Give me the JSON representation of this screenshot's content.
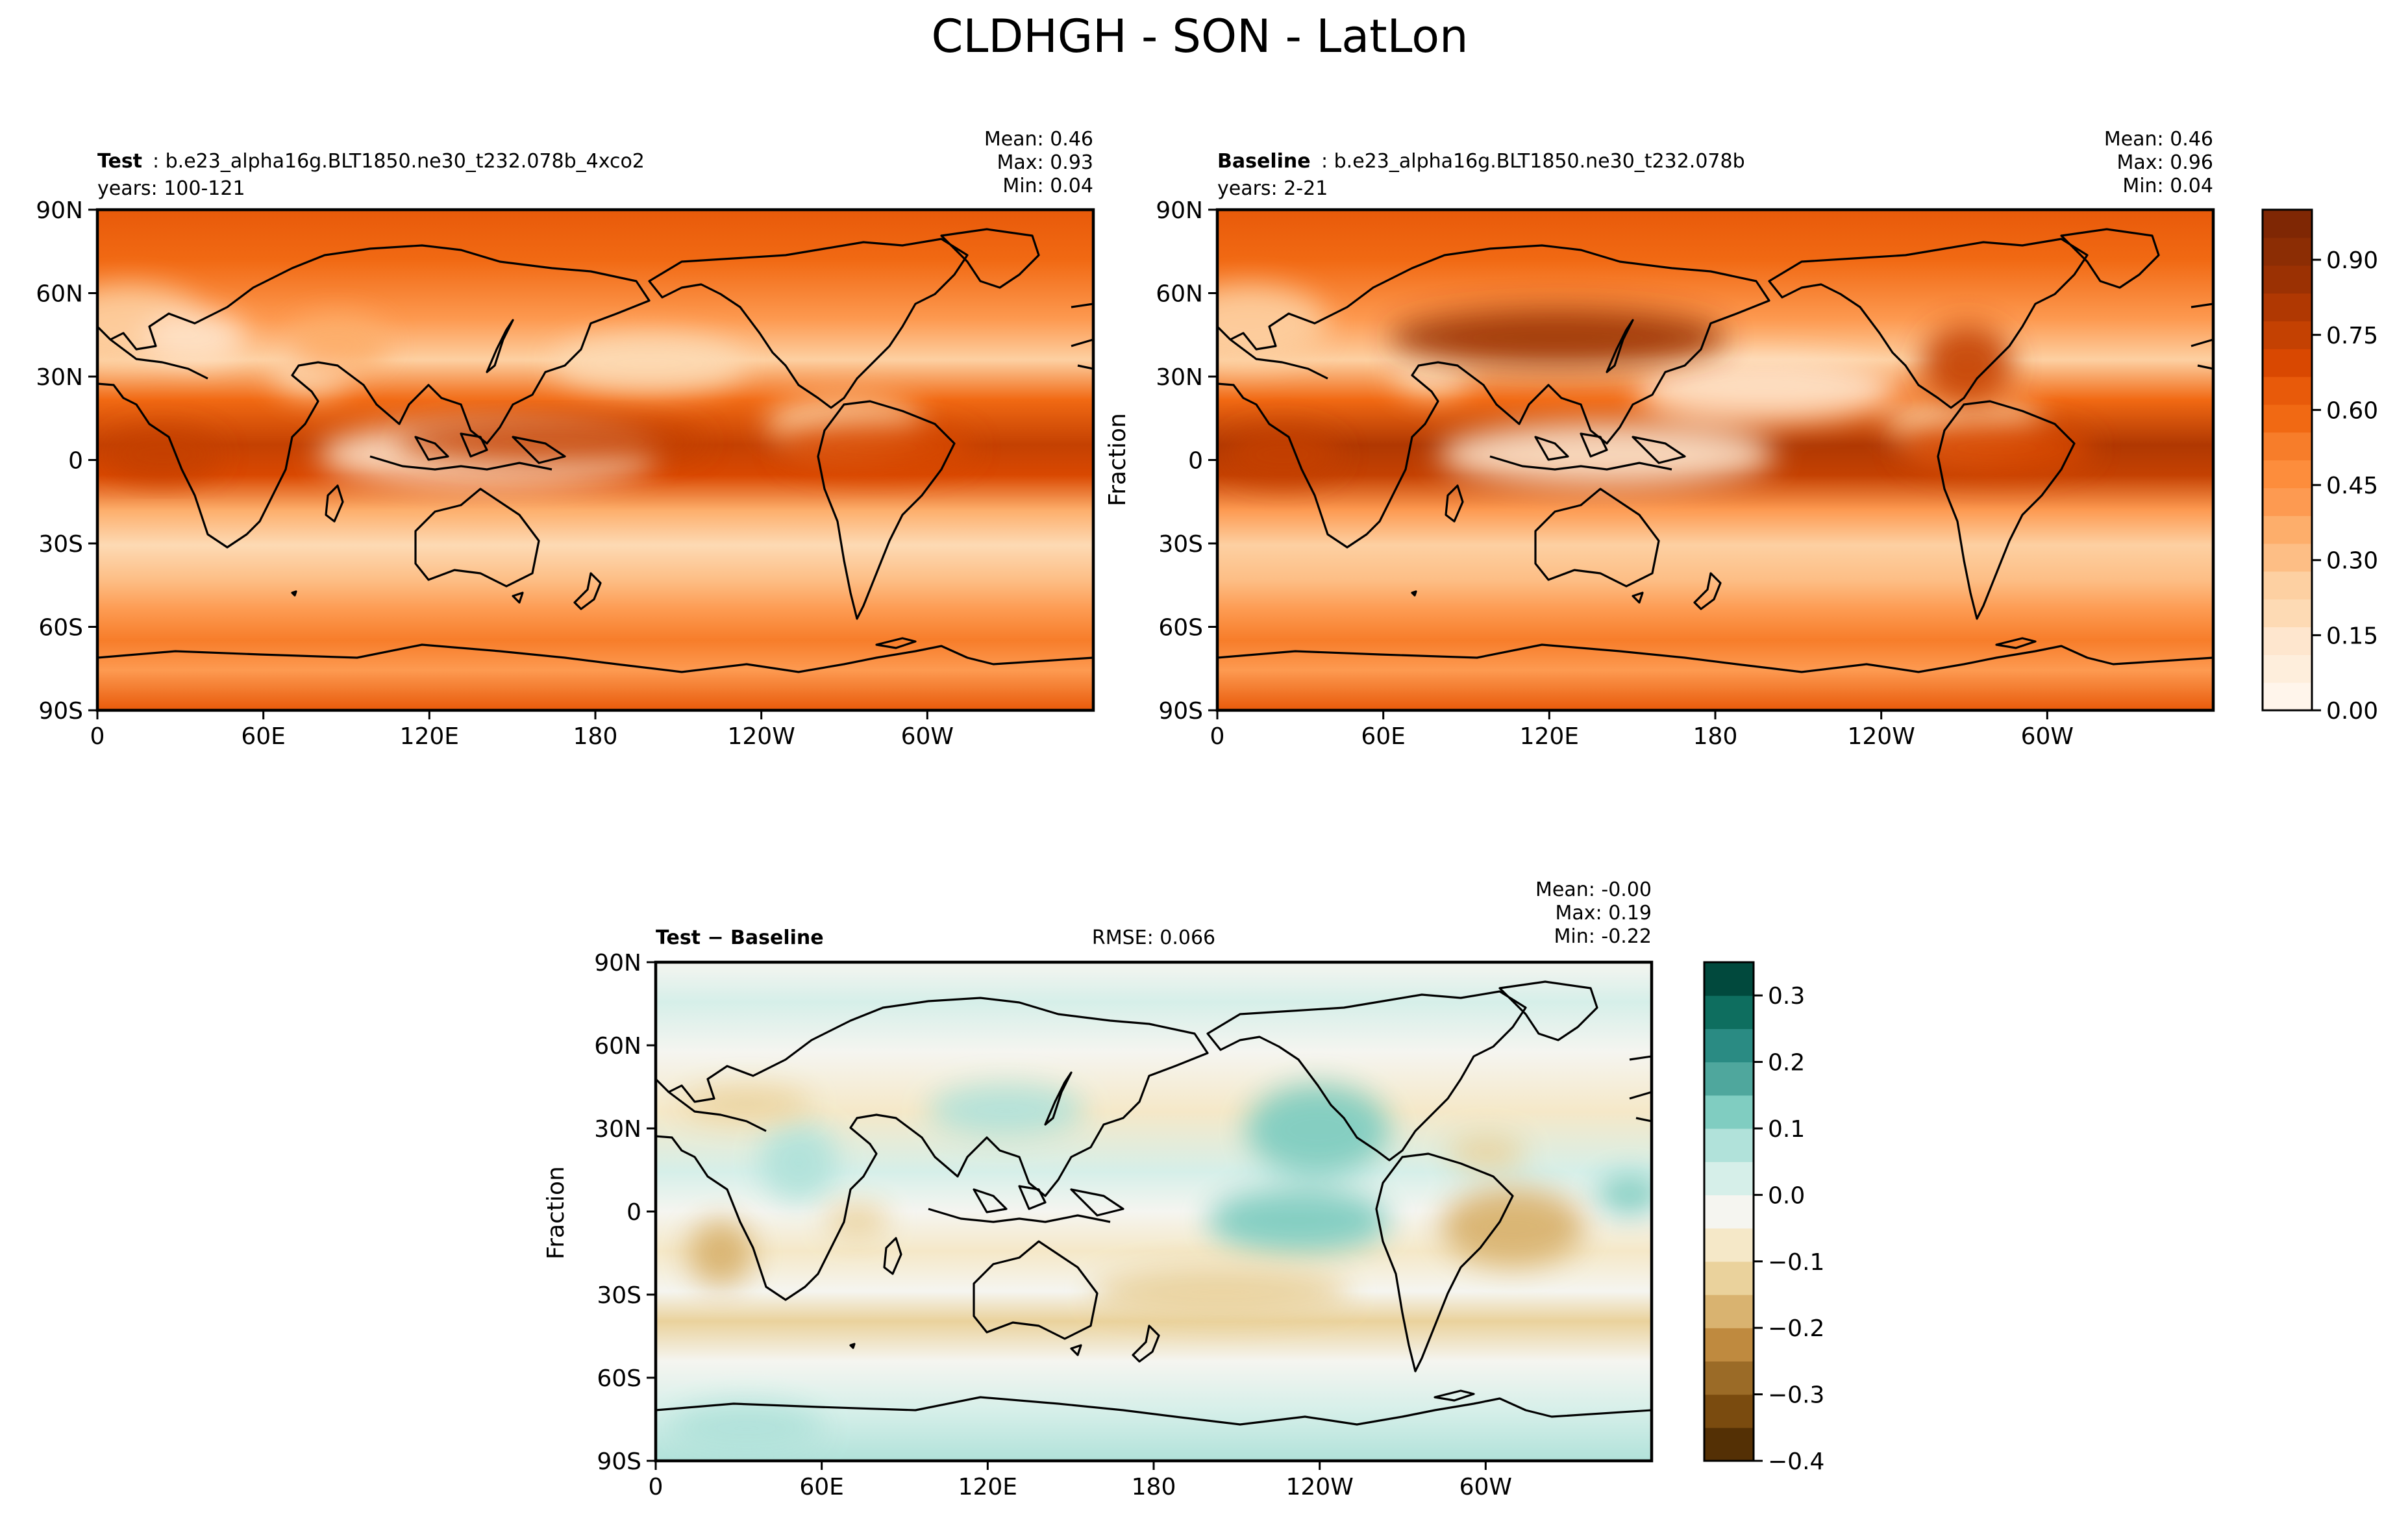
{
  "figure": {
    "title": "CLDHGH - SON - LatLon"
  },
  "chart_data": [
    {
      "type": "heatmap",
      "panel": "test",
      "header_bold": "Test",
      "header_rest": ": b.e23_alpha16g.BLT1850.ne30_t232.078b_4xco2",
      "subheader": "years: 100-121",
      "stats": [
        "Mean:  0.46",
        "Max:  0.93",
        "Min:  0.04"
      ],
      "x_ticks": [
        "0",
        "60E",
        "120E",
        "180",
        "120W",
        "60W"
      ],
      "y_ticks": [
        "90N",
        "60N",
        "30N",
        "0",
        "30S",
        "60S",
        "90S"
      ],
      "xlim": [
        0,
        360
      ],
      "ylim": [
        -90,
        90
      ],
      "colormap": "Oranges",
      "ylabel": ""
    },
    {
      "type": "heatmap",
      "panel": "baseline",
      "header_bold": "Baseline",
      "header_rest": ": b.e23_alpha16g.BLT1850.ne30_t232.078b",
      "subheader": "years: 2-21",
      "stats": [
        "Mean:  0.46",
        "Max:  0.96",
        "Min:  0.04"
      ],
      "x_ticks": [
        "0",
        "60E",
        "120E",
        "180",
        "120W",
        "60W"
      ],
      "y_ticks": [
        "90N",
        "60N",
        "30N",
        "0",
        "30S",
        "60S",
        "90S"
      ],
      "xlim": [
        0,
        360
      ],
      "ylim": [
        -90,
        90
      ],
      "colormap": "Oranges",
      "ylabel": "Fraction",
      "colorbar": {
        "ticks": [
          "0.00",
          "0.15",
          "0.30",
          "0.45",
          "0.60",
          "0.75",
          "0.90"
        ],
        "range": [
          0,
          1
        ],
        "levels": 20
      }
    },
    {
      "type": "heatmap",
      "panel": "difference",
      "header_bold": "Test − Baseline",
      "rmse": "RMSE: 0.066",
      "stats": [
        "Mean: -0.00",
        "Max:  0.19",
        "Min: -0.22"
      ],
      "x_ticks": [
        "0",
        "60E",
        "120E",
        "180",
        "120W",
        "60W"
      ],
      "y_ticks": [
        "90N",
        "60N",
        "30N",
        "0",
        "30S",
        "60S",
        "90S"
      ],
      "xlim": [
        0,
        360
      ],
      "ylim": [
        -90,
        90
      ],
      "colormap": "BrBG",
      "ylabel": "Fraction",
      "colorbar": {
        "ticks": [
          "0.3",
          "0.2",
          "0.1",
          "0.0",
          "−0.1",
          "−0.2",
          "−0.3",
          "−0.4"
        ],
        "range": [
          -0.4,
          0.35
        ],
        "levels": 15
      }
    }
  ],
  "colors": {
    "oranges": [
      "#fff5eb",
      "#feeedc",
      "#fee6ce",
      "#fddab4",
      "#fdd0a2",
      "#fdbe85",
      "#fdae6b",
      "#fd9a51",
      "#fd8d3c",
      "#f77d2a",
      "#f16913",
      "#e85a0a",
      "#d94801",
      "#c44102",
      "#b03802",
      "#9b3103",
      "#8c2d04",
      "#7f2704"
    ],
    "brbg": [
      "#543005",
      "#7a4b0f",
      "#9b6b27",
      "#bf8a3f",
      "#d9b370",
      "#ead29c",
      "#f5e8c8",
      "#f5f5f0",
      "#d6efe9",
      "#b1e2da",
      "#80cdc1",
      "#4fa79d",
      "#2a8b83",
      "#0e6e5f",
      "#01493d"
    ]
  }
}
